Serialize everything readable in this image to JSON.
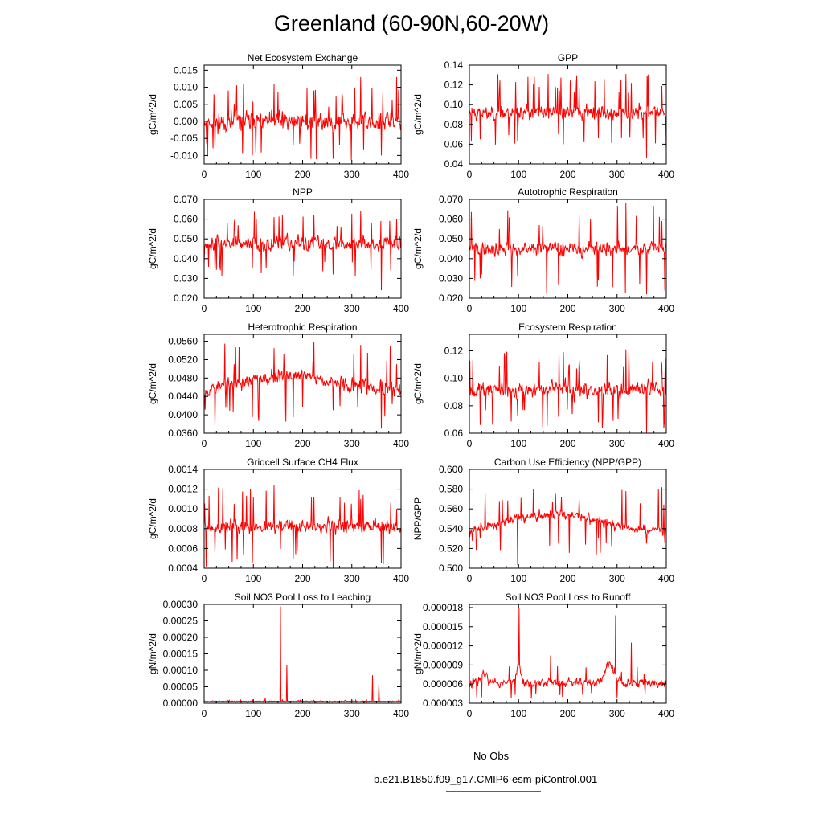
{
  "page": {
    "title": "Greenland (60-90N,60-20W)"
  },
  "legend": {
    "obs_label": "No Obs",
    "obs_color": "#4b4bd6",
    "model_label": "b.e21.B1850.f09_g17.CMIP6-esm-piControl.001",
    "model_color": "#e8262b"
  },
  "line_color": "#ff0000",
  "chart_data": [
    {
      "type": "line",
      "title": "Net Ecosystem Exchange",
      "ylabel": "gC/m^2/d",
      "xlim": [
        0,
        400
      ],
      "xticks": [
        0,
        100,
        200,
        300,
        400
      ],
      "ylim": [
        -0.0125,
        0.0165
      ],
      "yticks": [
        -0.01,
        -0.005,
        0.0,
        0.005,
        0.01,
        0.015
      ],
      "ytick_labels": [
        "-0.010",
        "-0.005",
        "0.000",
        "0.005",
        "0.010",
        "0.015"
      ],
      "base": 0.0,
      "amp": 0.0045,
      "min": -0.0115,
      "max": 0.0138,
      "seed": 11,
      "trend": 0,
      "values": [
        -0.008,
        0.005,
        -0.01,
        0.011,
        -0.007,
        0.009,
        -0.011,
        0.013,
        -0.01,
        0.013
      ]
    },
    {
      "type": "line",
      "title": "GPP",
      "ylabel": "gC/m^2/d",
      "xlim": [
        0,
        400
      ],
      "xticks": [
        0,
        100,
        200,
        300,
        400
      ],
      "ylim": [
        0.04,
        0.14
      ],
      "yticks": [
        0.04,
        0.06,
        0.08,
        0.1,
        0.12,
        0.14
      ],
      "ytick_labels": [
        "0.04",
        "0.06",
        "0.08",
        "0.10",
        "0.12",
        "0.14"
      ],
      "base": 0.092,
      "amp": 0.011,
      "min": 0.046,
      "max": 0.131,
      "seed": 23,
      "trend": 0,
      "values": [
        0.065,
        0.113,
        0.063,
        0.118,
        0.07,
        0.117,
        0.066,
        0.131,
        0.046,
        0.119
      ]
    },
    {
      "type": "line",
      "title": "NPP",
      "ylabel": "gC/m^2/d",
      "xlim": [
        0,
        400
      ],
      "xticks": [
        0,
        100,
        200,
        300,
        400
      ],
      "ylim": [
        0.02,
        0.07
      ],
      "yticks": [
        0.02,
        0.03,
        0.04,
        0.05,
        0.06,
        0.07
      ],
      "ytick_labels": [
        "0.020",
        "0.030",
        "0.040",
        "0.050",
        "0.060",
        "0.070"
      ],
      "base": 0.0475,
      "amp": 0.0055,
      "min": 0.024,
      "max": 0.064,
      "seed": 37,
      "trend": 0,
      "values": [
        0.034,
        0.058,
        0.035,
        0.061,
        0.031,
        0.062,
        0.032,
        0.064,
        0.024,
        0.06
      ]
    },
    {
      "type": "line",
      "title": "Autotrophic Respiration",
      "ylabel": "gC/m^2/d",
      "xlim": [
        0,
        400
      ],
      "xticks": [
        0,
        100,
        200,
        300,
        400
      ],
      "ylim": [
        0.02,
        0.07
      ],
      "yticks": [
        0.02,
        0.03,
        0.04,
        0.05,
        0.06,
        0.07
      ],
      "ytick_labels": [
        "0.020",
        "0.030",
        "0.040",
        "0.050",
        "0.060",
        "0.070"
      ],
      "base": 0.045,
      "amp": 0.0055,
      "min": 0.022,
      "max": 0.068,
      "seed": 41,
      "trend": 0,
      "values": [
        0.03,
        0.055,
        0.031,
        0.057,
        0.027,
        0.062,
        0.029,
        0.068,
        0.022,
        0.059
      ]
    },
    {
      "type": "line",
      "title": "Heterotrophic Respiration",
      "ylabel": "gC/m^2/d",
      "xlim": [
        0,
        400
      ],
      "xticks": [
        0,
        100,
        200,
        300,
        400
      ],
      "ylim": [
        0.036,
        0.0575
      ],
      "yticks": [
        0.036,
        0.04,
        0.044,
        0.048,
        0.052,
        0.056
      ],
      "ytick_labels": [
        "0.0360",
        "0.0400",
        "0.0440",
        "0.0480",
        "0.0520",
        "0.0560"
      ],
      "base": 0.047,
      "amp": 0.0024,
      "min": 0.0365,
      "max": 0.0558,
      "seed": 53,
      "trend": 0.0015,
      "values": [
        0.0375,
        0.051,
        0.0395,
        0.0545,
        0.0395,
        0.0558,
        0.041,
        0.0552,
        0.037,
        0.051
      ]
    },
    {
      "type": "line",
      "title": "Ecosystem Respiration",
      "ylabel": "gC/m^2/d",
      "xlim": [
        0,
        400
      ],
      "xticks": [
        0,
        100,
        200,
        300,
        400
      ],
      "ylim": [
        0.06,
        0.132
      ],
      "yticks": [
        0.06,
        0.08,
        0.1,
        0.12
      ],
      "ytick_labels": [
        "0.06",
        "0.08",
        "0.10",
        "0.12"
      ],
      "base": 0.092,
      "amp": 0.0085,
      "min": 0.06,
      "max": 0.121,
      "seed": 67,
      "trend": 0,
      "values": [
        0.066,
        0.109,
        0.073,
        0.112,
        0.072,
        0.113,
        0.068,
        0.121,
        0.06,
        0.11
      ]
    },
    {
      "type": "line",
      "title": "Gridcell Surface CH4 Flux",
      "ylabel": "gC/m^2/d",
      "xlim": [
        0,
        400
      ],
      "xticks": [
        0,
        100,
        200,
        300,
        400
      ],
      "ylim": [
        0.0004,
        0.0014
      ],
      "yticks": [
        0.0004,
        0.0006,
        0.0008,
        0.001,
        0.0012,
        0.0014
      ],
      "ytick_labels": [
        "0.0004",
        "0.0006",
        "0.0008",
        "0.0010",
        "0.0012",
        "0.0014"
      ],
      "base": 0.00082,
      "amp": 0.00011,
      "min": 0.0004,
      "max": 0.00124,
      "seed": 79,
      "trend": 0,
      "values": [
        0.00055,
        0.00105,
        0.00045,
        0.00124,
        0.0005,
        0.00112,
        0.0004,
        0.0011,
        0.00045,
        0.001
      ]
    },
    {
      "type": "line",
      "title": "Carbon Use Efficiency (NPP/GPP)",
      "ylabel": "NPP/GPP",
      "xlim": [
        0,
        400
      ],
      "xticks": [
        0,
        100,
        200,
        300,
        400
      ],
      "ylim": [
        0.5,
        0.6
      ],
      "yticks": [
        0.5,
        0.52,
        0.54,
        0.56,
        0.58,
        0.6
      ],
      "ytick_labels": [
        "0.500",
        "0.520",
        "0.540",
        "0.560",
        "0.580",
        "0.600"
      ],
      "base": 0.546,
      "amp": 0.0075,
      "min": 0.503,
      "max": 0.582,
      "seed": 97,
      "trend": 0.008,
      "values": [
        0.53,
        0.568,
        0.503,
        0.56,
        0.525,
        0.57,
        0.53,
        0.578,
        0.525,
        0.582
      ]
    },
    {
      "type": "line",
      "title": "Soil NO3 Pool Loss to Leaching",
      "ylabel": "gN/m^2/d",
      "xlim": [
        0,
        400
      ],
      "xticks": [
        0,
        100,
        200,
        300,
        400
      ],
      "ylim": [
        0,
        0.0003
      ],
      "yticks": [
        0,
        5e-05,
        0.0001,
        0.00015,
        0.0002,
        0.00025,
        0.0003
      ],
      "ytick_labels": [
        "0.00000",
        "0.00005",
        "0.00010",
        "0.00015",
        "0.00020",
        "0.00025",
        "0.00030"
      ],
      "base": 6e-06,
      "amp": 1.8e-06,
      "min": 2e-06,
      "max": 0.000294,
      "seed": 101,
      "trend": 0,
      "spikes": [
        [
          124,
          1.5e-05
        ],
        [
          155,
          0.000294
        ],
        [
          168,
          0.000117
        ],
        [
          342,
          8.5e-05
        ],
        [
          355,
          6e-05
        ]
      ],
      "values": [
        1.5e-05,
        0.000294,
        0.000117,
        8.5e-05,
        6e-05
      ]
    },
    {
      "type": "line",
      "title": "Soil NO3 Pool Loss to Runoff",
      "ylabel": "gN/m^2/d",
      "xlim": [
        0,
        400
      ],
      "xticks": [
        0,
        100,
        200,
        300,
        400
      ],
      "ylim": [
        3e-06,
        1.85e-05
      ],
      "yticks": [
        3e-06,
        6e-06,
        9e-06,
        1.2e-05,
        1.5e-05,
        1.8e-05
      ],
      "ytick_labels": [
        "0.000003",
        "0.000006",
        "0.000009",
        "0.000012",
        "0.000015",
        "0.000018"
      ],
      "base": 6.2e-06,
      "amp": 1.1e-06,
      "min": 3.5e-06,
      "max": 1.8e-05,
      "seed": 113,
      "trend": 0,
      "bumps": [
        [
          100,
          3e-06,
          6
        ],
        [
          285,
          3e-06,
          12
        ],
        [
          30,
          1.2e-06,
          10
        ]
      ],
      "spikes": [
        [
          101,
          1.8e-05
        ],
        [
          297,
          1.68e-05
        ],
        [
          329,
          1.25e-05
        ],
        [
          165,
          1.05e-05
        ]
      ],
      "values": [
        1.8e-05,
        1.68e-05,
        1.25e-05,
        1.05e-05
      ]
    }
  ]
}
